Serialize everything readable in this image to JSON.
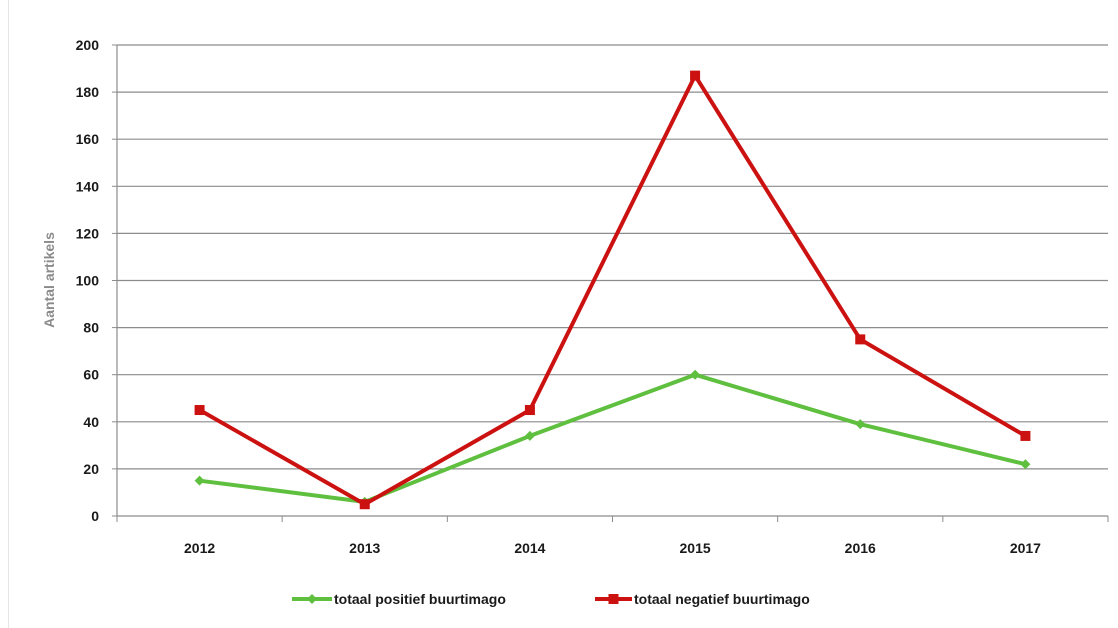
{
  "chart_data": {
    "type": "line",
    "title": "",
    "xlabel": "",
    "ylabel": "Aantal artikels",
    "categories": [
      "2012",
      "2013",
      "2014",
      "2015",
      "2016",
      "2017"
    ],
    "ylim": [
      0,
      200
    ],
    "yticks": [
      0,
      20,
      40,
      60,
      80,
      100,
      120,
      140,
      160,
      180,
      200
    ],
    "grid": true,
    "legend_position": "bottom",
    "series": [
      {
        "name": "totaal positief buurtimago",
        "color": "#5fbf3f",
        "marker": "diamond",
        "values": [
          15,
          6,
          34,
          60,
          39,
          22
        ]
      },
      {
        "name": "totaal negatief buurtimago",
        "color": "#cc1111",
        "marker": "square",
        "values": [
          45,
          5,
          45,
          187,
          75,
          34
        ]
      }
    ]
  }
}
